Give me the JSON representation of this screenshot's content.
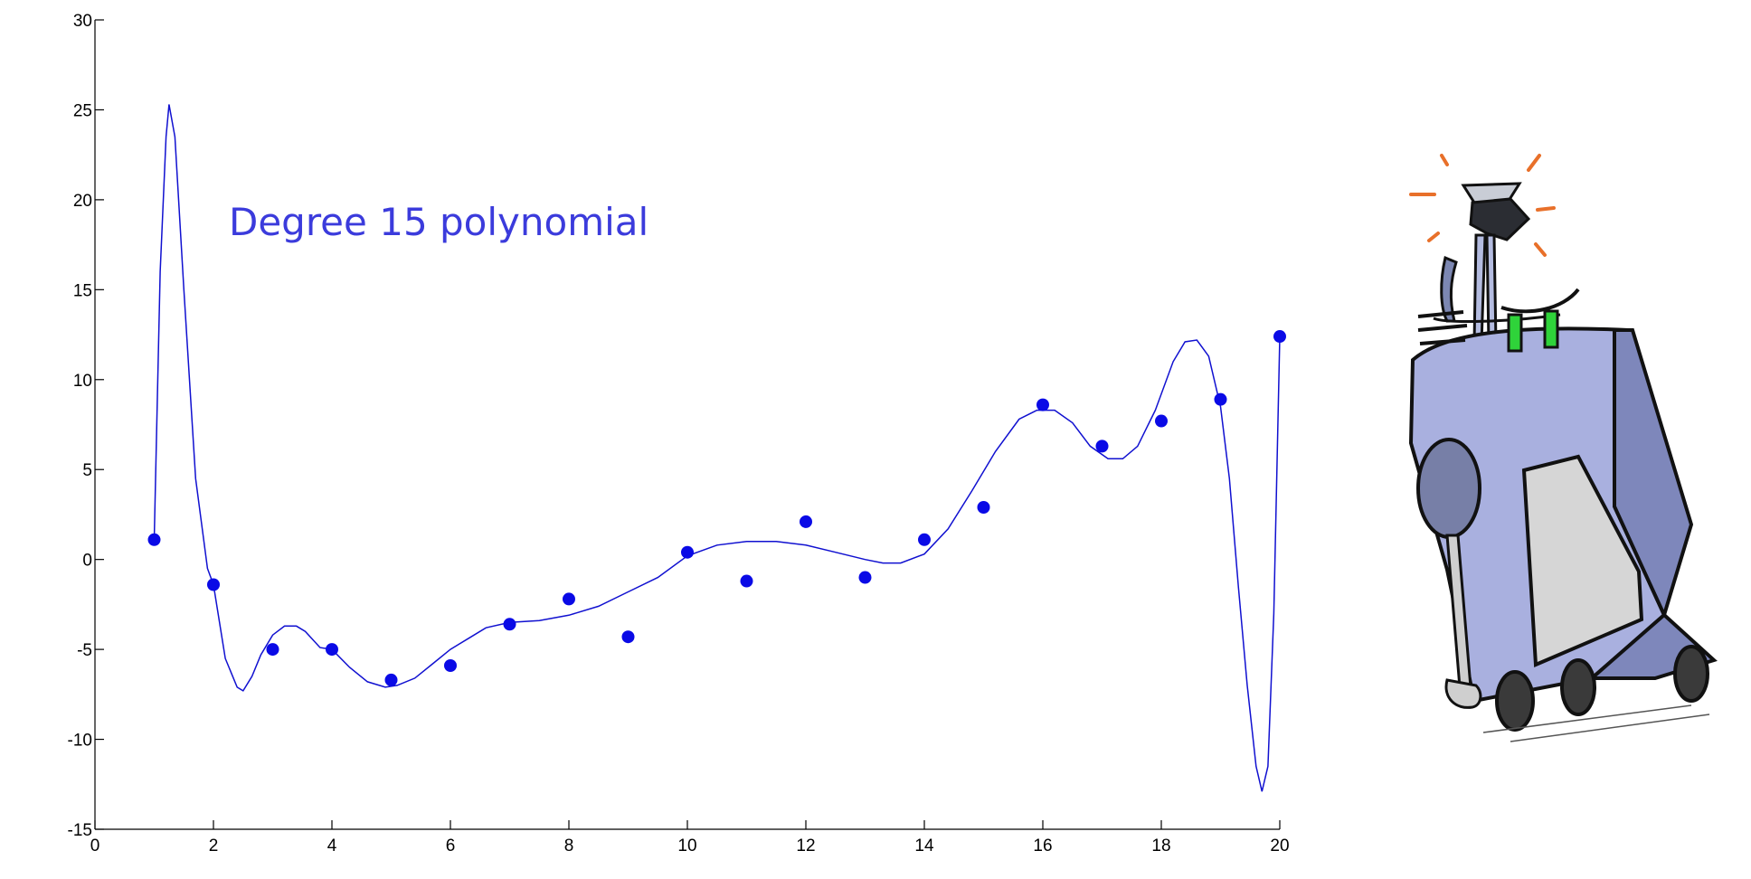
{
  "chart_data": {
    "type": "scatter",
    "annotation": "Degree 15 polynomial",
    "xlim": [
      0,
      20
    ],
    "ylim": [
      -15,
      30
    ],
    "x_ticks": [
      0,
      2,
      4,
      6,
      8,
      10,
      12,
      14,
      16,
      18,
      20
    ],
    "y_ticks": [
      -15,
      -10,
      -5,
      0,
      5,
      10,
      15,
      20,
      25,
      30
    ],
    "grid": false,
    "points": {
      "x": [
        1,
        2,
        3,
        4,
        5,
        6,
        7,
        8,
        9,
        10,
        11,
        12,
        13,
        14,
        15,
        16,
        17,
        18,
        19,
        20
      ],
      "y": [
        1.1,
        -1.4,
        -5.0,
        -5.0,
        -6.7,
        -5.9,
        -3.6,
        -2.2,
        -4.3,
        0.4,
        -1.2,
        2.1,
        -1.0,
        1.1,
        2.9,
        8.6,
        6.3,
        7.7,
        8.9,
        12.4
      ]
    },
    "fit_curve": {
      "x": [
        1.0,
        1.1,
        1.2,
        1.25,
        1.35,
        1.5,
        1.7,
        1.9,
        2.0,
        2.2,
        2.4,
        2.5,
        2.65,
        2.8,
        3.0,
        3.2,
        3.4,
        3.55,
        3.8,
        4.0,
        4.3,
        4.6,
        4.9,
        5.1,
        5.4,
        5.7,
        6.0,
        6.3,
        6.6,
        7.0,
        7.5,
        8.0,
        8.5,
        9.0,
        9.5,
        10.0,
        10.5,
        11.0,
        11.5,
        12.0,
        12.5,
        13.0,
        13.3,
        13.6,
        14.0,
        14.4,
        14.8,
        15.2,
        15.6,
        15.9,
        16.2,
        16.5,
        16.8,
        17.1,
        17.35,
        17.6,
        17.9,
        18.2,
        18.4,
        18.6,
        18.8,
        19.0,
        19.15,
        19.3,
        19.45,
        19.6,
        19.7,
        19.8,
        19.9,
        20.0
      ],
      "y": [
        1.1,
        16.0,
        23.5,
        25.3,
        23.5,
        15.0,
        4.5,
        -0.5,
        -1.4,
        -5.5,
        -7.1,
        -7.3,
        -6.5,
        -5.3,
        -4.2,
        -3.7,
        -3.7,
        -4.0,
        -4.9,
        -5.0,
        -6.0,
        -6.8,
        -7.1,
        -7.0,
        -6.6,
        -5.8,
        -5.0,
        -4.4,
        -3.8,
        -3.5,
        -3.4,
        -3.1,
        -2.6,
        -1.8,
        -1.0,
        0.2,
        0.8,
        1.0,
        1.0,
        0.8,
        0.4,
        0.0,
        -0.2,
        -0.2,
        0.3,
        1.7,
        3.8,
        6.0,
        7.8,
        8.3,
        8.3,
        7.6,
        6.3,
        5.6,
        5.6,
        6.3,
        8.3,
        11.0,
        12.1,
        12.2,
        11.3,
        8.5,
        4.5,
        -1.5,
        -7.0,
        -11.5,
        -12.9,
        -11.5,
        -3.0,
        12.4
      ]
    }
  },
  "illustration": {
    "icon": "robot-icon"
  }
}
